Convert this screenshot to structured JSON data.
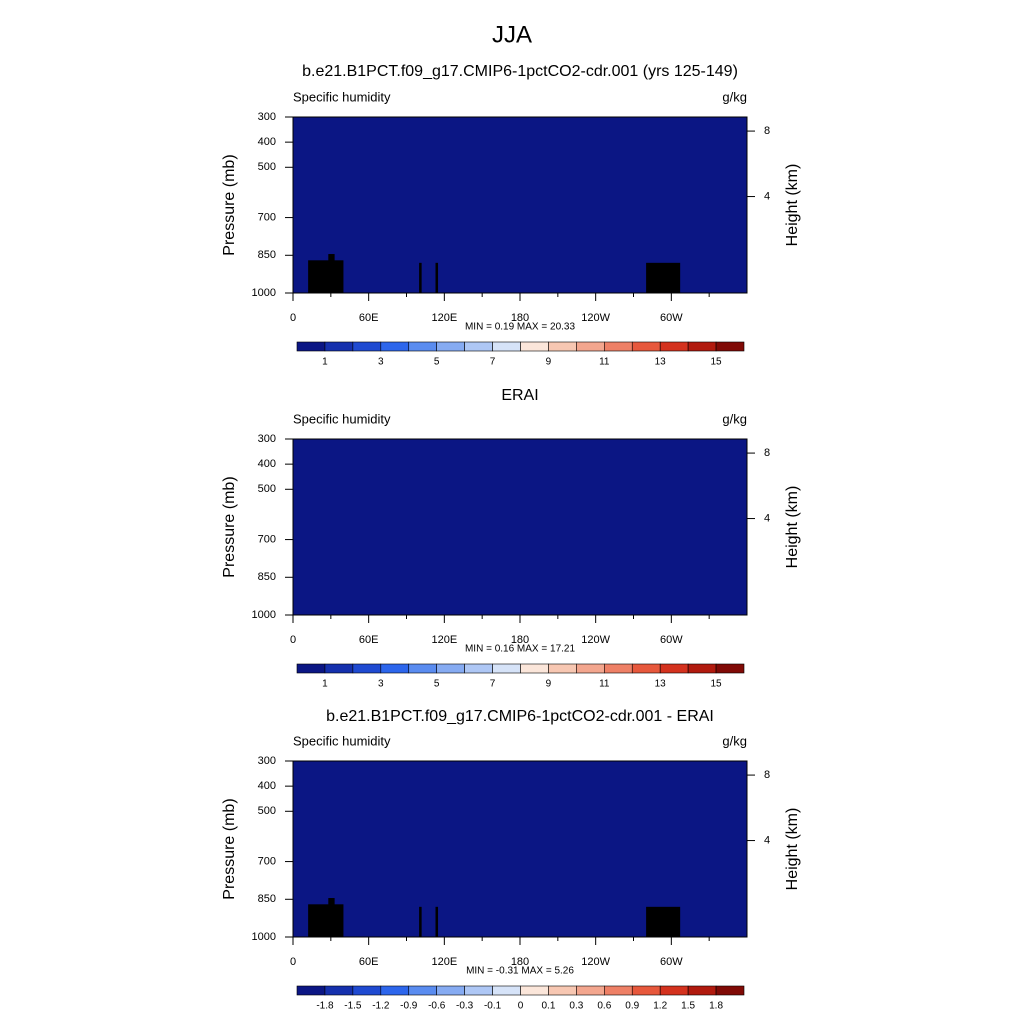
{
  "title": "JJA",
  "chart_data": [
    {
      "type": "contour",
      "title": "b.e21.B1PCT.f09_g17.CMIP6-1pctCO2-cdr.001 (yrs 125-149)",
      "left_label": "Specific humidity",
      "right_label": "g/kg",
      "ylabel": "Pressure (mb)",
      "y2label": "Height (km)",
      "xlim": [
        0,
        360
      ],
      "xticks": [
        0,
        {
          "value": 60,
          "label": "60E"
        },
        {
          "value": 120,
          "label": "120E"
        },
        {
          "value": 180,
          "label": "180"
        },
        {
          "value": 240,
          "label": "120W"
        },
        {
          "value": 300,
          "label": "60W"
        }
      ],
      "ylim": [
        1000,
        300
      ],
      "yticks": [
        300,
        400,
        500,
        700,
        850,
        1000
      ],
      "y2ticks": [
        8,
        4
      ],
      "stats": "MIN =   0.19  MAX =  20.33",
      "levels": [
        1,
        2,
        3,
        4,
        5,
        6,
        7,
        8,
        9,
        10,
        11,
        12,
        13,
        14,
        15
      ],
      "colorbar_ticks": [
        1,
        3,
        5,
        7,
        9,
        11,
        13,
        15
      ],
      "colors": [
        "#0b1684",
        "#1530ad",
        "#1f4ad1",
        "#2d66ec",
        "#5a8cf0",
        "#86abf2",
        "#aec7f5",
        "#d6e3f8",
        "#fbe6da",
        "#f7c7b2",
        "#f3a68e",
        "#ee8066",
        "#e7583c",
        "#d4321e",
        "#b11a0e",
        "#800a06"
      ]
    },
    {
      "type": "contour",
      "title": "ERAI",
      "left_label": "Specific humidity",
      "right_label": "g/kg",
      "ylabel": "Pressure (mb)",
      "y2label": "Height (km)",
      "xlim": [
        0,
        360
      ],
      "xticks": [
        0,
        {
          "value": 60,
          "label": "60E"
        },
        {
          "value": 120,
          "label": "120E"
        },
        {
          "value": 180,
          "label": "180"
        },
        {
          "value": 240,
          "label": "120W"
        },
        {
          "value": 300,
          "label": "60W"
        }
      ],
      "ylim": [
        1000,
        300
      ],
      "yticks": [
        300,
        400,
        500,
        700,
        850,
        1000
      ],
      "y2ticks": [
        8,
        4
      ],
      "stats": "MIN =   0.16  MAX =  17.21",
      "levels": [
        1,
        2,
        3,
        4,
        5,
        6,
        7,
        8,
        9,
        10,
        11,
        12,
        13,
        14,
        15
      ],
      "colorbar_ticks": [
        1,
        3,
        5,
        7,
        9,
        11,
        13,
        15
      ],
      "colors": [
        "#0b1684",
        "#1530ad",
        "#1f4ad1",
        "#2d66ec",
        "#5a8cf0",
        "#86abf2",
        "#aec7f5",
        "#d6e3f8",
        "#fbe6da",
        "#f7c7b2",
        "#f3a68e",
        "#ee8066",
        "#e7583c",
        "#d4321e",
        "#b11a0e",
        "#800a06"
      ]
    },
    {
      "type": "contour",
      "title": "b.e21.B1PCT.f09_g17.CMIP6-1pctCO2-cdr.001 - ERAI",
      "left_label": "Specific humidity",
      "right_label": "g/kg",
      "ylabel": "Pressure (mb)",
      "y2label": "Height (km)",
      "xlim": [
        0,
        360
      ],
      "xticks": [
        0,
        {
          "value": 60,
          "label": "60E"
        },
        {
          "value": 120,
          "label": "120E"
        },
        {
          "value": 180,
          "label": "180"
        },
        {
          "value": 240,
          "label": "120W"
        },
        {
          "value": 300,
          "label": "60W"
        }
      ],
      "ylim": [
        1000,
        300
      ],
      "yticks": [
        300,
        400,
        500,
        700,
        850,
        1000
      ],
      "y2ticks": [
        8,
        4
      ],
      "stats": "MIN =  -0.31  MAX =   5.26",
      "levels": [
        -1.8,
        -1.5,
        -1.2,
        -0.9,
        -0.6,
        -0.3,
        -0.1,
        0,
        0.1,
        0.3,
        0.6,
        0.9,
        1.2,
        1.5,
        1.8
      ],
      "colorbar_ticks": [
        -1.8,
        -1.5,
        -1.2,
        -0.9,
        -0.6,
        -0.3,
        -0.1,
        0,
        0.1,
        0.3,
        0.6,
        0.9,
        1.2,
        1.5,
        1.8
      ],
      "colors": [
        "#0b1684",
        "#1530ad",
        "#1f4ad1",
        "#2d66ec",
        "#5a8cf0",
        "#86abf2",
        "#aec7f5",
        "#d6e3f8",
        "#fbe6da",
        "#f7c7b2",
        "#f3a68e",
        "#ee8066",
        "#e7583c",
        "#d4321e",
        "#b11a0e",
        "#800a06"
      ]
    }
  ]
}
